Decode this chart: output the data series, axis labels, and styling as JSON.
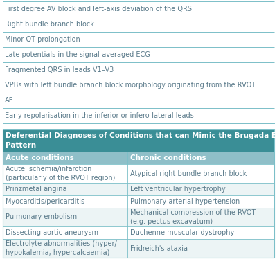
{
  "bg_color": "#ffffff",
  "top_list_items": [
    "First degree AV block and left-axis deviation of the QRS",
    "Right bundle branch block",
    "Minor QT prolongation",
    "Late potentials in the signal-averaged ECG",
    "Fragmented QRS in leads V1–V3",
    "VPBs with left bundle branch block morphology originating from the RVOT",
    "AF",
    "Early repolarisation in the inferior or infero-lateral leads"
  ],
  "top_list_text_color": "#5a7a8a",
  "top_list_line_color": "#7bbfc8",
  "table_title_line1": "Deferential Diagnoses of Conditions that can Mimic the Brugada ECG",
  "table_title_line2": "Pattern",
  "table_title_bg": "#3a8e96",
  "table_title_color": "#ffffff",
  "col_header_bg": "#8fbfc8",
  "col_header_color": "#ffffff",
  "col_headers": [
    "Acute conditions",
    "Chronic conditions"
  ],
  "table_rows": [
    [
      "Acute ischemia/infarction\n(particularly of the RVOT region)",
      "Atypical right bundle branch block"
    ],
    [
      "Prinzmetal angina",
      "Left ventricular hypertrophy"
    ],
    [
      "Myocarditis/pericarditis",
      "Pulmonary arterial hypertension"
    ],
    [
      "Pulmonary embolism",
      "Mechanical compression of the RVOT\n(e.g. pectus excavatum)"
    ],
    [
      "Dissecting aortic aneurysm",
      "Duchenne muscular dystrophy"
    ],
    [
      "Electrolyte abnormalities (hyper/\nhypokalemia, hypercalcaemia)",
      "Fridreich's ataxia"
    ]
  ],
  "row_alt_colors": [
    "#ffffff",
    "#ecf4f5"
  ],
  "row_text_color": "#5a7a8a",
  "row_line_color": "#7bbfc8",
  "font_size": 7.0,
  "header_font_size": 7.5,
  "title_font_size": 7.5,
  "col_split": 0.46
}
